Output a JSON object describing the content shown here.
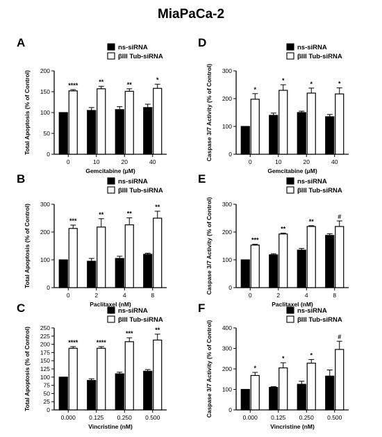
{
  "figure_title": "MiaPaCa-2",
  "panel_letters": [
    "A",
    "B",
    "C",
    "D",
    "E",
    "F"
  ],
  "chart_data": [
    {
      "type": "bar",
      "panel": "A",
      "categories": [
        "0",
        "10",
        "20",
        "40"
      ],
      "xlabel": "Gemcitabine (μM)",
      "ylabel": "Total Apoptosis (% of Control)",
      "ylim": [
        0,
        200
      ],
      "yticks": [
        "0",
        "50",
        "100",
        "150",
        "200"
      ],
      "legend": "top-right",
      "series": [
        {
          "name": "ns-siRNA",
          "fill": "#000000",
          "values": [
            100,
            105,
            107,
            112
          ],
          "errors": [
            0,
            7,
            7,
            8
          ]
        },
        {
          "name": "βIII Tub-siRNA",
          "fill": "#ffffff",
          "values": [
            152,
            157,
            151,
            158
          ],
          "errors": [
            3,
            6,
            6,
            10
          ]
        }
      ],
      "significance": [
        "****",
        "**",
        "**",
        "*"
      ]
    },
    {
      "type": "bar",
      "panel": "B",
      "categories": [
        "0",
        "2",
        "4",
        "8"
      ],
      "xlabel": "Paclitaxel (nM)",
      "ylabel": "Total Apoptosis (% of Control)",
      "ylim": [
        0,
        300
      ],
      "yticks": [
        "0",
        "100",
        "200",
        "300"
      ],
      "legend": "top-right",
      "series": [
        {
          "name": "ns-siRNA",
          "fill": "#000000",
          "values": [
            100,
            95,
            105,
            120
          ],
          "errors": [
            0,
            10,
            8,
            4
          ]
        },
        {
          "name": "βIII Tub-siRNA",
          "fill": "#ffffff",
          "values": [
            213,
            218,
            226,
            250
          ],
          "errors": [
            12,
            30,
            25,
            25
          ]
        }
      ],
      "significance": [
        "***",
        "**",
        "**",
        "**"
      ]
    },
    {
      "type": "bar",
      "panel": "C",
      "categories": [
        "0.000",
        "0.125",
        "0.250",
        "0.500"
      ],
      "xlabel": "Vincristine (nM)",
      "ylabel": "Total Apoptosis (% of Control)",
      "ylim": [
        0,
        250
      ],
      "yticks": [
        "0",
        "25",
        "50",
        "75",
        "100",
        "125",
        "150",
        "175",
        "200",
        "225",
        "250"
      ],
      "legend": "top-right",
      "series": [
        {
          "name": "ns-siRNA",
          "fill": "#000000",
          "values": [
            100,
            90,
            110,
            118
          ],
          "errors": [
            0,
            5,
            5,
            5
          ]
        },
        {
          "name": "βIII Tub-siRNA",
          "fill": "#ffffff",
          "values": [
            188,
            188,
            208,
            213
          ],
          "errors": [
            5,
            5,
            12,
            18
          ]
        }
      ],
      "significance": [
        "****",
        "****",
        "***",
        "**"
      ]
    },
    {
      "type": "bar",
      "panel": "D",
      "categories": [
        "0",
        "10",
        "20",
        "40"
      ],
      "xlabel": "Gemcitabine (μM)",
      "ylabel": "Caspase 3/7 Activity (% of Control)",
      "ylim": [
        0,
        300
      ],
      "yticks": [
        "0",
        "100",
        "200",
        "300"
      ],
      "legend": "top-right",
      "series": [
        {
          "name": "ns-siRNA",
          "fill": "#000000",
          "values": [
            100,
            140,
            150,
            135
          ],
          "errors": [
            0,
            8,
            5,
            8
          ]
        },
        {
          "name": "βIII Tub-siRNA",
          "fill": "#ffffff",
          "values": [
            198,
            230,
            220,
            217
          ],
          "errors": [
            20,
            20,
            18,
            22
          ]
        }
      ],
      "significance": [
        "*",
        "*",
        "*",
        "*"
      ]
    },
    {
      "type": "bar",
      "panel": "E",
      "categories": [
        "0",
        "2",
        "4",
        "8"
      ],
      "xlabel": "Paclitaxel (nM)",
      "ylabel": "Caspase 3/7 Activity (% of Control)",
      "ylim": [
        0,
        300
      ],
      "yticks": [
        "0",
        "100",
        "200",
        "300"
      ],
      "legend": "top-right",
      "series": [
        {
          "name": "ns-siRNA",
          "fill": "#000000",
          "values": [
            100,
            118,
            135,
            188
          ],
          "errors": [
            0,
            4,
            6,
            6
          ]
        },
        {
          "name": "βIII Tub-siRNA",
          "fill": "#ffffff",
          "values": [
            153,
            193,
            220,
            220
          ],
          "errors": [
            3,
            3,
            3,
            20
          ]
        }
      ],
      "significance": [
        "***",
        "**",
        "**",
        "#"
      ]
    },
    {
      "type": "bar",
      "panel": "F",
      "categories": [
        "0.000",
        "0.125",
        "0.250",
        "0.500"
      ],
      "xlabel": "Vincristine (nM)",
      "ylabel": "Caspase 3/7 Activity (% of Control)",
      "ylim": [
        0,
        400
      ],
      "yticks": [
        "0",
        "100",
        "200",
        "300",
        "400"
      ],
      "legend": "top-right",
      "series": [
        {
          "name": "ns-siRNA",
          "fill": "#000000",
          "values": [
            100,
            110,
            125,
            165
          ],
          "errors": [
            0,
            4,
            15,
            30
          ]
        },
        {
          "name": "βIII Tub-siRNA",
          "fill": "#ffffff",
          "values": [
            168,
            205,
            228,
            295
          ],
          "errors": [
            15,
            25,
            18,
            40
          ]
        }
      ],
      "significance": [
        "*",
        "*",
        "*",
        "#"
      ]
    }
  ]
}
